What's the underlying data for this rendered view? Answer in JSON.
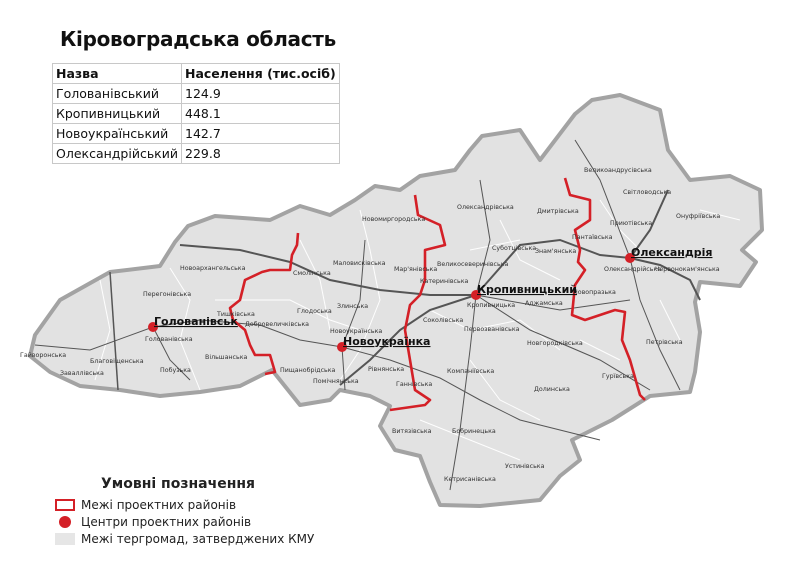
{
  "title": "Кіровоградська область",
  "table": {
    "headers": [
      "Назва",
      "Населення (тис.осіб)"
    ],
    "rows": [
      [
        "Голованівський",
        "124.9"
      ],
      [
        "Кропивницький",
        "448.1"
      ],
      [
        "Новоукраїнський",
        "142.7"
      ],
      [
        "Олександрійський",
        "229.8"
      ]
    ]
  },
  "map": {
    "colors": {
      "fill": "#e2e2e2",
      "outline": "#a3a3a3",
      "district_border": "#d42027",
      "road": "#555555",
      "community_border": "#ffffff",
      "center": "#d42027"
    },
    "centers": [
      "Голованівськ",
      "Новоукраїнка",
      "Кропивницький",
      "Олександрія"
    ],
    "communities": [
      "Новоархангельська",
      "Перегонівська",
      "Голованівська",
      "Гайворонська",
      "Благовіщенська",
      "Заваллівська",
      "Побузька",
      "Вільшанська",
      "Тишківська",
      "Добровеличківська",
      "Глодоська",
      "Злинська",
      "Новоукраїнська",
      "Смолінська",
      "Маловисківська",
      "Мар'янівська",
      "Пищанобрідська",
      "Помічнянська",
      "Рівнянська",
      "Ганнівська",
      "Новомиргородська",
      "Олександрівська",
      "Великосеверинівська",
      "Катеринівська",
      "Соколівська",
      "Кропивницька",
      "Первозванівська",
      "Суботцівська",
      "Знам'янська",
      "Дмитрівська",
      "Великоандрусівська",
      "Світловодська",
      "Пантаївська",
      "Приютівська",
      "Онуфріївська",
      "Олександрійська",
      "Червонокам'янська",
      "Новопразька",
      "Аджамська",
      "Новгородківська",
      "Компаніївська",
      "Долинська",
      "Гурївська",
      "Петрівська",
      "Витязівська",
      "Бобринецька",
      "Устинівська",
      "Кетрисанівська"
    ]
  },
  "legend": {
    "title": "Умовні позначення",
    "items": [
      "Межі проектних районів",
      "Центри проектних районів",
      "Межі тергромад, затверджених КМУ"
    ]
  }
}
